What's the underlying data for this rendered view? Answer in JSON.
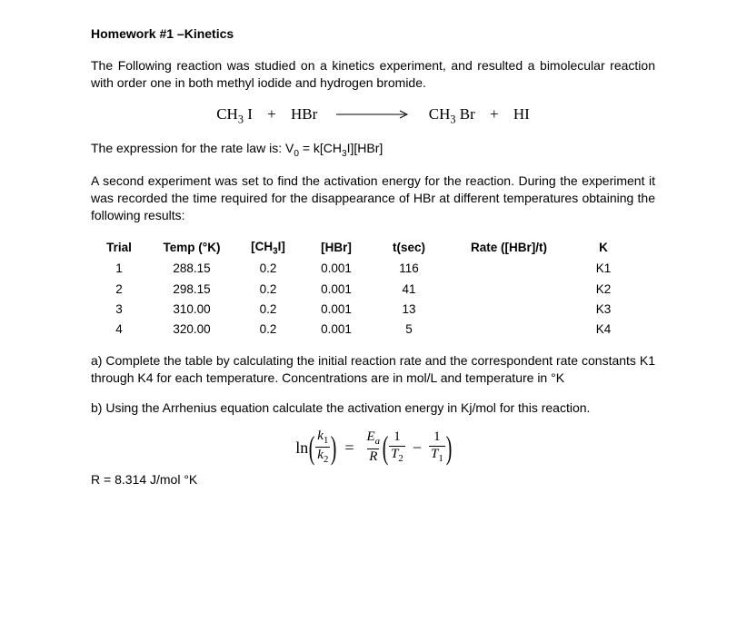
{
  "title": "Homework #1 –Kinetics",
  "para1": "The Following reaction was studied on a kinetics experiment, and resulted a bimolecular reaction with order one in both methyl iodide and hydrogen bromide.",
  "reaction": {
    "lhs1": "CH",
    "lhs1_sub": "3",
    "lhs1_tail": " I",
    "plus1": "+",
    "lhs2": "HBr",
    "rhs1": "CH",
    "rhs1_sub": "3",
    "rhs1_tail": " Br",
    "plus2": "+",
    "rhs2": "HI"
  },
  "rate_law_prefix": "The expression for the rate law is: V",
  "rate_law_sub": "0",
  "rate_law_suffix": " = k[CH",
  "rate_law_sub2": "3",
  "rate_law_tail": "I][HBr]",
  "para2": "A second experiment was set to find the activation energy for the reaction. During the experiment it was recorded the time required for the disappearance of HBr at different temperatures obtaining the following results:",
  "table": {
    "headers": {
      "trial": "Trial",
      "temp": "Temp (°K)",
      "ch3i_pre": "[CH",
      "ch3i_sub": "3",
      "ch3i_post": "I]",
      "hbr": "[HBr]",
      "t": "t(sec)",
      "rate": "Rate ([HBr]/t)",
      "k": "K"
    },
    "rows": [
      {
        "trial": "1",
        "temp": "288.15",
        "ch3i": "0.2",
        "hbr": "0.001",
        "t": "116",
        "rate": "",
        "k": "K1"
      },
      {
        "trial": "2",
        "temp": "298.15",
        "ch3i": "0.2",
        "hbr": "0.001",
        "t": "41",
        "rate": "",
        "k": "K2"
      },
      {
        "trial": "3",
        "temp": "310.00",
        "ch3i": "0.2",
        "hbr": "0.001",
        "t": "13",
        "rate": "",
        "k": "K3"
      },
      {
        "trial": "4",
        "temp": "320.00",
        "ch3i": "0.2",
        "hbr": "0.001",
        "t": "5",
        "rate": "",
        "k": "K4"
      }
    ]
  },
  "qa": "a) Complete the table by calculating the initial reaction rate and the correspondent rate constants K1 through K4 for each temperature. Concentrations are in mol/L and temperature in °K",
  "qb": "b) Using the Arrhenius equation calculate the activation energy in Kj/mol for this reaction.",
  "arrhenius": {
    "ln": "ln",
    "k1": "k",
    "k1_sub": "1",
    "k2": "k",
    "k2_sub": "2",
    "eq": "=",
    "Ea": "E",
    "Ea_sub": "a",
    "R": "R",
    "one1": "1",
    "T2": "T",
    "T2_sub": "2",
    "minus": "−",
    "one2": "1",
    "T1": "T",
    "T1_sub": "1"
  },
  "Rconst": "R = 8.314 J/mol °K",
  "colors": {
    "text": "#000000",
    "background": "#ffffff",
    "arrow": "#000000"
  }
}
